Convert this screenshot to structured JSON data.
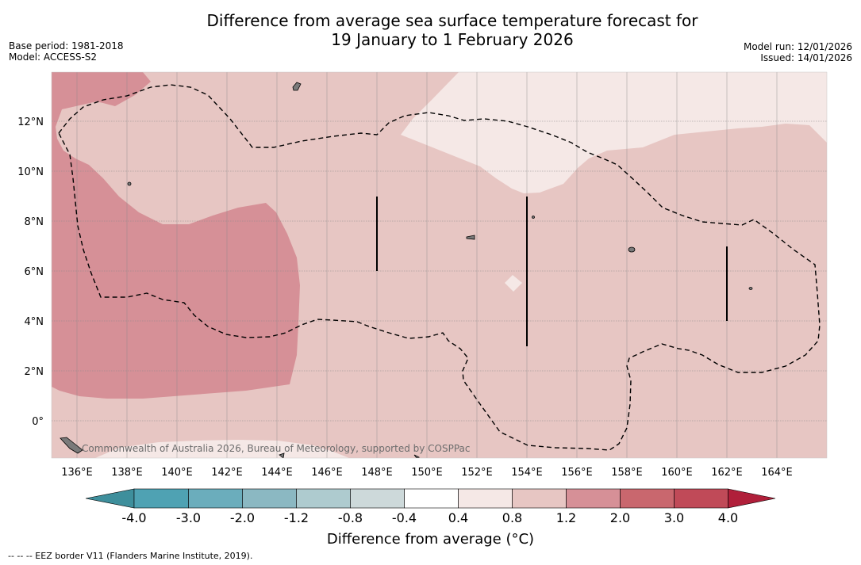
{
  "title": {
    "line1": "Difference from average sea surface temperature forecast for",
    "line2": "19 January to 1 February 2026"
  },
  "meta": {
    "base_period": "Base period: 1981-2018",
    "model": "Model: ACCESS-S2",
    "model_run": "Model run: 12/01/2026",
    "issued": "Issued: 14/01/2026"
  },
  "map": {
    "lon_labels": [
      "136°E",
      "138°E",
      "140°E",
      "142°E",
      "144°E",
      "146°E",
      "148°E",
      "150°E",
      "152°E",
      "154°E",
      "156°E",
      "158°E",
      "160°E",
      "162°E",
      "164°E"
    ],
    "lat_labels": [
      "12°N",
      "10°N",
      "8°N",
      "6°N",
      "4°N",
      "2°N",
      "0°"
    ],
    "watermark": "Commonwealth of Australia 2026, Bureau of Meteorology, supported by COSPPac",
    "colors": {
      "band_0.4_0.8": "#f5e8e6",
      "band_0.8_1.2": "#e7c6c3",
      "band_1.2_2.0": "#d69097",
      "contour": "#000000",
      "grid": "#8a8a8a"
    }
  },
  "colorbar": {
    "ticks": [
      "-4.0",
      "-3.0",
      "-2.0",
      "-1.2",
      "-0.8",
      "-0.4",
      "0.4",
      "0.8",
      "1.2",
      "2.0",
      "3.0",
      "4.0"
    ],
    "colors": [
      "#3e8f9c",
      "#4fa2b3",
      "#6badbc",
      "#8bb8c2",
      "#aecbcf",
      "#cdd9da",
      "#ffffff",
      "#f5e8e6",
      "#e7c6c3",
      "#d69097",
      "#c9676e",
      "#c04a58",
      "#b01f3a"
    ],
    "label": "Difference from average (°C)"
  },
  "footnote": "--  --  -- EEZ border V11 (Flanders Marine Institute, 2019)."
}
